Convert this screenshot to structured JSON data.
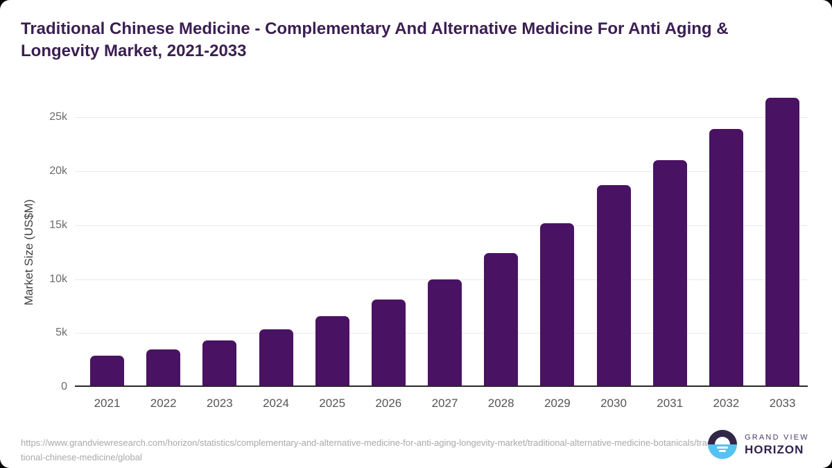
{
  "page": {
    "background_color": "#000000",
    "card_color": "#ffffff"
  },
  "header": {
    "title": "Traditional Chinese Medicine - Complementary And Alternative Medicine For Anti Aging & Longevity Market, 2021-2033",
    "title_color": "#3b1e52"
  },
  "chart_data": {
    "type": "bar",
    "title": "Traditional Chinese Medicine - Complementary And Alternative Medicine For Anti Aging & Longevity Market, 2021-2033",
    "categories": [
      "2021",
      "2022",
      "2023",
      "2024",
      "2025",
      "2026",
      "2027",
      "2028",
      "2029",
      "2030",
      "2031",
      "2032",
      "2033"
    ],
    "values": [
      2900,
      3500,
      4300,
      5350,
      6550,
      8100,
      10000,
      12400,
      15200,
      18700,
      21050,
      23900,
      26850
    ],
    "unit": "US$M",
    "xlabel": "",
    "ylabel": "Market Size (US$M)",
    "ytick_values": [
      0,
      5000,
      10000,
      15000,
      20000,
      25000
    ],
    "ytick_labels": [
      "0",
      "5k",
      "10k",
      "15k",
      "20k",
      "25k"
    ],
    "ylim": [
      0,
      27500
    ],
    "grid": true,
    "legend": false,
    "bar_color": "#4a1262",
    "grid_color": "#e9e9e9",
    "axis_line_color": "#262626",
    "tick_label_color": "#6b6b6b"
  },
  "footer": {
    "source_url": "https://www.grandviewresearch.com/horizon/statistics/complementary-and-alternative-medicine-for-anti-aging-longevity-market/traditional-alternative-medicine-botanicals/traditional-chinese-medicine/global",
    "logo": {
      "brand_line1": "GRAND VIEW",
      "brand_line2": "HORIZON",
      "icon": "horizon-sun-icon",
      "icon_top_color": "#332747",
      "icon_bottom_color": "#56c2ef"
    }
  }
}
